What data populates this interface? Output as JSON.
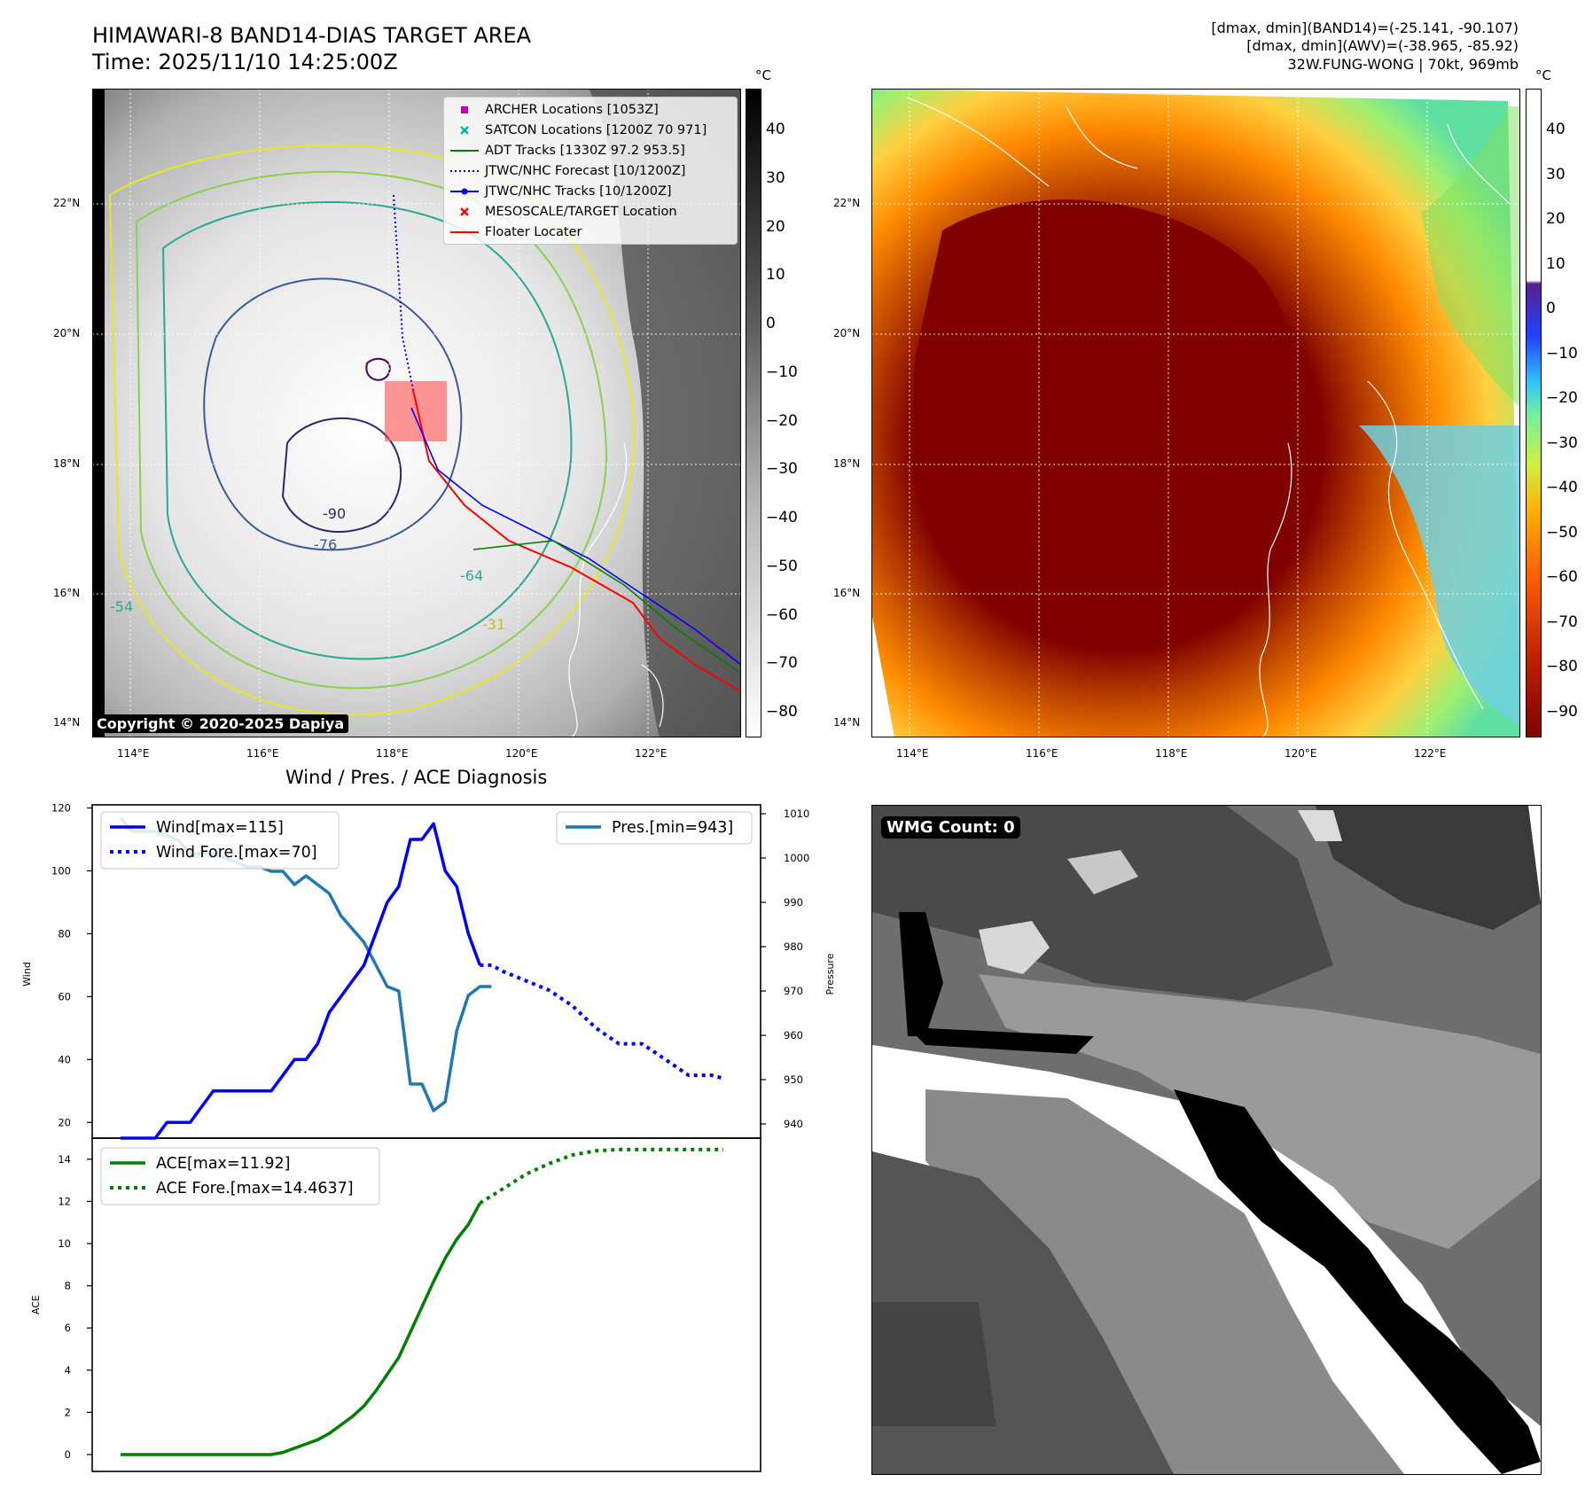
{
  "header": {
    "title_line1": "HIMAWARI-8 BAND14-DIAS TARGET AREA",
    "title_line2": "Time: 2025/11/10 14:25:00Z",
    "stats_line1": "[dmax, dmin](BAND14)=(-25.141, -90.107)",
    "stats_line2": "[dmax, dmin](AWV)=(-38.965, -85.92)",
    "stats_line3": "32W.FUNG-WONG | 70kt, 969mb"
  },
  "map_left": {
    "lat_labels": [
      "22°N",
      "20°N",
      "18°N",
      "16°N",
      "14°N"
    ],
    "lon_labels": [
      "114°E",
      "116°E",
      "118°E",
      "120°E",
      "122°E"
    ],
    "contour_labels": [
      "-90",
      "-76",
      "-64",
      "-54",
      "-31"
    ],
    "copyright": "Copyright © 2020-2025 Dapiya",
    "legend": [
      {
        "label": "ARCHER Locations [1053Z]",
        "color": "#c000c0",
        "symbol": "square"
      },
      {
        "label": "SATCON Locations [1200Z 70 971]",
        "color": "#00b0b0",
        "symbol": "x"
      },
      {
        "label": "ADT Tracks [1330Z 97.2 953.5]",
        "color": "#008000",
        "symbol": "line"
      },
      {
        "label": "JTWC/NHC Forecast [10/1200Z]",
        "color": "#0000ff",
        "symbol": "dotted"
      },
      {
        "label": "JTWC/NHC Tracks [10/1200Z]",
        "color": "#0000ff",
        "symbol": "line-dot"
      },
      {
        "label": "MESOSCALE/TARGET Location",
        "color": "#ff0000",
        "symbol": "x"
      },
      {
        "label": "Floater Locater",
        "color": "#ff0000",
        "symbol": "line"
      }
    ],
    "colorbar": {
      "unit": "°C",
      "ticks": [
        "40",
        "30",
        "20",
        "10",
        "0",
        "−10",
        "−20",
        "−30",
        "−40",
        "−50",
        "−60",
        "−70",
        "−80"
      ]
    }
  },
  "map_right": {
    "lat_labels": [
      "22°N",
      "20°N",
      "18°N",
      "16°N",
      "14°N"
    ],
    "lon_labels": [
      "114°E",
      "116°E",
      "118°E",
      "120°E",
      "122°E"
    ],
    "colorbar": {
      "unit": "°C",
      "ticks": [
        "40",
        "30",
        "20",
        "10",
        "0",
        "−10",
        "−20",
        "−30",
        "−40",
        "−50",
        "−60",
        "−70",
        "−80",
        "−90"
      ]
    }
  },
  "wmg": {
    "badge": "WMG Count: 0"
  },
  "chart_data": [
    {
      "type": "line",
      "title": "Wind / Pres. / ACE Diagnosis",
      "xlabel": "",
      "ylabel": "Wind",
      "ylabel_right": "Pressure",
      "ylim": [
        15,
        121
      ],
      "ylim_right": [
        940,
        1010
      ],
      "yticks": [
        20,
        40,
        60,
        80,
        100,
        120
      ],
      "yticks_right": [
        940,
        950,
        960,
        970,
        980,
        990,
        1000,
        1010
      ],
      "x": [
        0,
        1,
        2,
        3,
        4,
        5,
        6,
        7,
        8,
        9,
        10,
        11,
        12,
        13,
        14,
        15,
        16,
        17,
        18,
        19,
        20,
        21,
        22,
        23,
        24,
        25,
        26,
        27,
        28,
        29,
        30,
        31,
        32,
        33,
        34,
        35,
        36,
        37,
        38,
        39,
        40,
        41,
        42,
        43,
        44,
        45,
        46,
        47,
        48,
        49,
        50,
        51,
        52
      ],
      "legend": [
        "Wind[max=115]",
        "Wind Fore.[max=70]",
        "Pres.[min=943]"
      ],
      "series": [
        {
          "name": "Wind[max=115]",
          "axis": "left",
          "style": "solid",
          "color": "#0000ff",
          "x": [
            0,
            1,
            2,
            3,
            4,
            5,
            6,
            7,
            8,
            9,
            10,
            11,
            12,
            13,
            14,
            15,
            16,
            17,
            18,
            19,
            20,
            21,
            22,
            23,
            24,
            25,
            26,
            27,
            28,
            29,
            30,
            31
          ],
          "values": [
            15,
            15,
            15,
            15,
            20,
            20,
            20,
            25,
            30,
            30,
            30,
            30,
            30,
            30,
            35,
            40,
            40,
            45,
            55,
            60,
            65,
            70,
            80,
            90,
            95,
            110,
            110,
            115,
            100,
            95,
            80,
            70
          ]
        },
        {
          "name": "Wind Fore.[max=70]",
          "axis": "left",
          "style": "dotted",
          "color": "#0000ff",
          "x": [
            31,
            32,
            33,
            35,
            37,
            39,
            41,
            43,
            45,
            47,
            49,
            51,
            52
          ],
          "values": [
            70,
            70,
            68,
            65,
            62,
            57,
            50,
            45,
            45,
            40,
            35,
            35,
            34
          ]
        },
        {
          "name": "Pres.[min=943]",
          "axis": "right",
          "style": "solid",
          "color": "#1f77b4",
          "x": [
            0,
            1,
            2,
            3,
            4,
            5,
            6,
            7,
            8,
            9,
            10,
            11,
            12,
            13,
            14,
            15,
            16,
            17,
            18,
            19,
            20,
            21,
            22,
            23,
            24,
            25,
            26,
            27,
            28,
            29,
            30,
            31,
            32
          ],
          "values": [
            1009,
            1006,
            1006,
            1006,
            1005,
            1004,
            1001,
            1001,
            1001,
            1000,
            999,
            998,
            998,
            997,
            997,
            994,
            996,
            994,
            992,
            987,
            984,
            981,
            976,
            971,
            970,
            949,
            949,
            943,
            945,
            961,
            969,
            971,
            971
          ]
        }
      ]
    },
    {
      "type": "line",
      "ylabel": "ACE",
      "ylim": [
        -0.8,
        15
      ],
      "yticks": [
        0,
        2,
        4,
        6,
        8,
        10,
        12,
        14
      ],
      "legend": [
        "ACE[max=11.92]",
        "ACE Fore.[max=14.4637]"
      ],
      "series": [
        {
          "name": "ACE[max=11.92]",
          "style": "solid",
          "color": "#008000",
          "x": [
            0,
            13,
            14,
            15,
            16,
            17,
            18,
            19,
            20,
            21,
            22,
            23,
            24,
            25,
            26,
            27,
            28,
            29,
            30,
            31
          ],
          "values": [
            0,
            0,
            0.1,
            0.3,
            0.5,
            0.7,
            1.0,
            1.4,
            1.8,
            2.3,
            3.0,
            3.8,
            4.6,
            5.8,
            7.0,
            8.2,
            9.3,
            10.2,
            10.9,
            11.92
          ]
        },
        {
          "name": "ACE Fore.[max=14.4637]",
          "style": "dotted",
          "color": "#008000",
          "x": [
            31,
            33,
            35,
            37,
            39,
            41,
            43,
            45,
            47,
            49,
            51,
            52
          ],
          "values": [
            11.92,
            12.6,
            13.3,
            13.8,
            14.2,
            14.4,
            14.46,
            14.46,
            14.46,
            14.46,
            14.46,
            14.46
          ]
        }
      ]
    }
  ]
}
